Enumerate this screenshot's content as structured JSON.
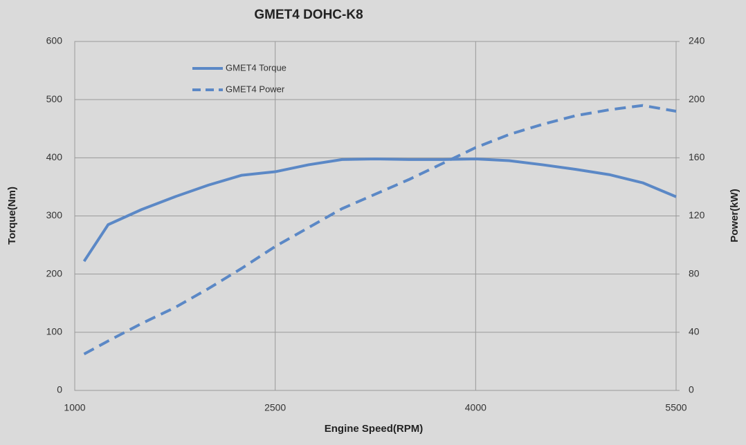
{
  "chart_data": {
    "type": "line",
    "title": "GMET4 DOHC-K8",
    "x_label": "Engine Speed(RPM)",
    "y_label": "Torque(Nm)",
    "y2_label": "Power(kW)",
    "x": [
      1070,
      1250,
      1500,
      1750,
      2000,
      2250,
      2500,
      2750,
      3000,
      3250,
      3500,
      3750,
      4000,
      4250,
      4500,
      4750,
      5000,
      5250,
      5500
    ],
    "series": [
      {
        "name": "GMET4 Torque",
        "color": "#5b88c6",
        "style": "solid",
        "values": [
          222,
          285,
          311,
          333,
          353,
          370,
          376,
          388,
          397,
          398,
          397,
          397,
          398,
          395,
          388,
          380,
          371,
          357,
          333
        ]
      },
      {
        "name": "GMET4 Power",
        "color": "#5b88c6",
        "style": "dashed",
        "axis": "y2",
        "values": [
          25,
          34,
          46,
          57,
          70,
          84,
          99,
          112,
          125,
          135,
          145,
          156,
          167,
          176,
          183,
          189,
          193,
          196,
          192
        ]
      }
    ],
    "xlim": [
      1000,
      5500
    ],
    "xticks": [
      1000,
      2500,
      4000,
      5500
    ],
    "ylim": [
      0,
      600
    ],
    "yticks": [
      0,
      100,
      200,
      300,
      400,
      500,
      600
    ],
    "y2lim": [
      0,
      240
    ],
    "y2ticks": [
      0,
      40,
      80,
      120,
      160,
      200,
      240
    ],
    "grid": true,
    "legend": "top-left"
  }
}
